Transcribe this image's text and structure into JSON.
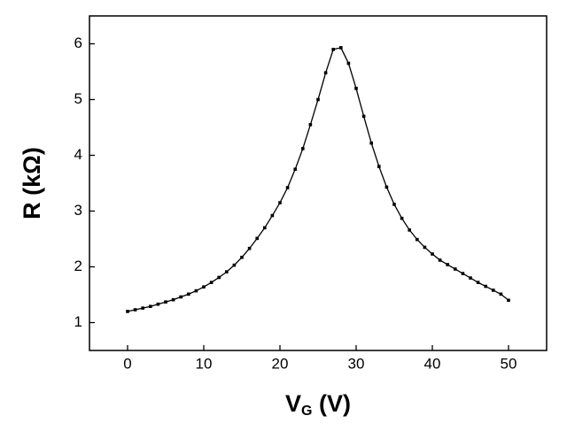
{
  "chart_data": {
    "type": "line",
    "x": [
      0,
      1,
      2,
      3,
      4,
      5,
      6,
      7,
      8,
      9,
      10,
      11,
      12,
      13,
      14,
      15,
      16,
      17,
      18,
      19,
      20,
      21,
      22,
      23,
      24,
      25,
      26,
      27,
      28,
      29,
      30,
      31,
      32,
      33,
      34,
      35,
      36,
      37,
      38,
      39,
      40,
      41,
      42,
      43,
      44,
      45,
      46,
      47,
      48,
      49,
      50
    ],
    "series": [
      {
        "color": "#000000",
        "values": [
          1.2,
          1.23,
          1.26,
          1.29,
          1.33,
          1.37,
          1.41,
          1.46,
          1.51,
          1.57,
          1.64,
          1.72,
          1.81,
          1.91,
          2.03,
          2.17,
          2.33,
          2.51,
          2.7,
          2.92,
          3.15,
          3.42,
          3.75,
          4.12,
          4.55,
          5.0,
          5.48,
          5.9,
          5.93,
          5.65,
          5.2,
          4.7,
          4.22,
          3.8,
          3.43,
          3.12,
          2.87,
          2.66,
          2.49,
          2.35,
          2.23,
          2.12,
          2.04,
          1.96,
          1.88,
          1.8,
          1.72,
          1.65,
          1.58,
          1.51,
          1.4
        ]
      }
    ],
    "xlim": [
      -5,
      55
    ],
    "xticks": [
      0,
      10,
      20,
      30,
      40,
      50
    ],
    "ylim": [
      0.5,
      6.5
    ],
    "yticks": [
      1,
      2,
      3,
      4,
      5,
      6
    ],
    "ylabel": "R (kΩ)",
    "xlabel": {
      "main": "V",
      "subscript": "G",
      "suffix": " (V)"
    }
  }
}
